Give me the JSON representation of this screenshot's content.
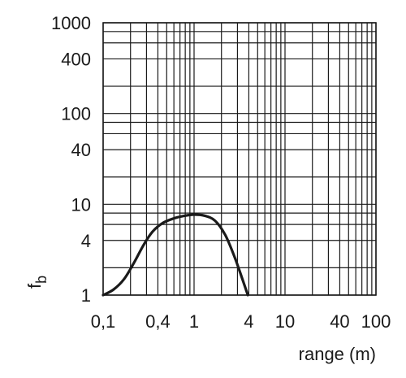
{
  "chart_data": {
    "type": "line",
    "x_scale": "log",
    "y_scale": "log",
    "xlim": [
      0.1,
      100
    ],
    "ylim": [
      1,
      1000
    ],
    "xlabel": "range (m)",
    "ylabel": "fb",
    "x_ticks": [
      {
        "value": 0.1,
        "label": "0,1"
      },
      {
        "value": 0.4,
        "label": "0,4"
      },
      {
        "value": 1,
        "label": "1"
      },
      {
        "value": 4,
        "label": "4"
      },
      {
        "value": 10,
        "label": "10"
      },
      {
        "value": 40,
        "label": "40"
      },
      {
        "value": 100,
        "label": "100"
      }
    ],
    "y_ticks": [
      {
        "value": 1,
        "label": "1"
      },
      {
        "value": 4,
        "label": "4"
      },
      {
        "value": 10,
        "label": "10"
      },
      {
        "value": 40,
        "label": "40"
      },
      {
        "value": 100,
        "label": "100"
      },
      {
        "value": 400,
        "label": "400"
      },
      {
        "value": 1000,
        "label": "1000"
      }
    ],
    "x_gridlines": [
      0.1,
      0.2,
      0.3,
      0.4,
      0.5,
      0.6,
      0.7,
      0.8,
      0.9,
      1,
      2,
      3,
      4,
      5,
      6,
      7,
      8,
      9,
      10,
      20,
      30,
      40,
      50,
      60,
      70,
      80,
      90,
      100
    ],
    "y_gridlines": [
      1,
      2,
      4,
      6,
      8,
      10,
      20,
      40,
      60,
      80,
      100,
      200,
      400,
      600,
      800,
      1000
    ],
    "grid": true,
    "series": [
      {
        "x": [
          0.1,
          0.13,
          0.17,
          0.22,
          0.28,
          0.35,
          0.45,
          0.6,
          0.8,
          1.0,
          1.3,
          1.7,
          2.2,
          2.8,
          3.4,
          3.9
        ],
        "y": [
          1.0,
          1.15,
          1.5,
          2.3,
          3.6,
          5.0,
          6.2,
          7.0,
          7.5,
          7.7,
          7.5,
          6.6,
          4.6,
          2.6,
          1.5,
          1.0
        ]
      }
    ]
  }
}
